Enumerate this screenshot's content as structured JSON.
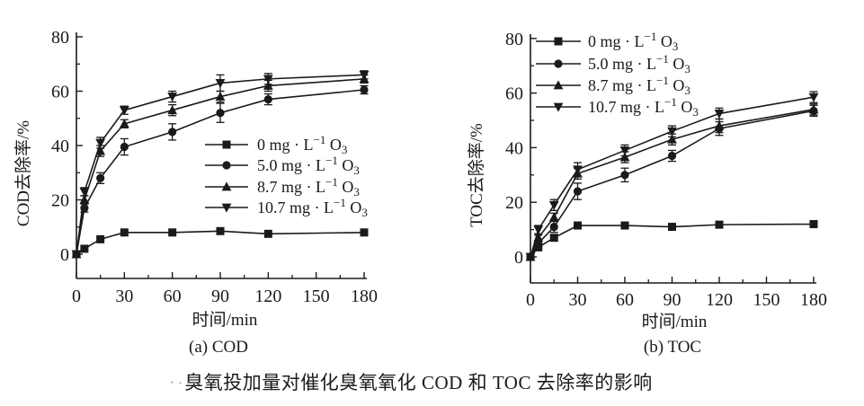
{
  "figure": {
    "caption": "臭氧投加量对催化臭氧氧化 COD 和 TOC 去除率的影响",
    "ink_color": "#1a1a1a",
    "background_color": "#ffffff"
  },
  "chart_data": [
    {
      "type": "line",
      "id": "cod",
      "subtitle": "(a) COD",
      "xlabel": "时间/min",
      "ylabel": "COD去除率/%",
      "xlim": [
        0,
        180
      ],
      "ylim": [
        -9,
        80
      ],
      "xticks": [
        0,
        30,
        60,
        90,
        120,
        150,
        180
      ],
      "yticks": [
        0,
        20,
        40,
        60,
        80
      ],
      "x_minor_ticks": [
        15,
        45,
        75,
        105,
        135,
        165
      ],
      "y_minor_ticks": [
        10,
        30,
        50,
        70
      ],
      "grid": false,
      "legend_position": "inside-middle-right",
      "x": [
        0,
        5,
        15,
        30,
        60,
        90,
        120,
        180
      ],
      "series": [
        {
          "key": "0mg-O3",
          "name": "0 mg·L⁻¹ O₃",
          "marker": "square",
          "label_parts": {
            "main": "0 mg · L",
            "sup": "−1",
            "tail": " O",
            "sub": "3"
          },
          "values": [
            0,
            2,
            5.5,
            8,
            8,
            8.5,
            7.5,
            8
          ],
          "errors": [
            1,
            0,
            0,
            0,
            0,
            0,
            0,
            0
          ]
        },
        {
          "key": "5.0mg-O3",
          "name": "5.0 mg·L⁻¹ O₃",
          "marker": "circle",
          "label_parts": {
            "main": "5.0 mg · L",
            "sup": "−1",
            "tail": " O",
            "sub": "3"
          },
          "values": [
            0,
            17,
            28,
            39.5,
            45,
            52,
            57,
            60.5
          ],
          "errors": [
            1,
            1.5,
            2,
            3,
            3,
            3.5,
            2,
            1.5
          ]
        },
        {
          "key": "8.7mg-O3",
          "name": "8.7 mg·L⁻¹ O₃",
          "marker": "triangle-up",
          "label_parts": {
            "main": "8.7 mg · L",
            "sup": "−1",
            "tail": " O",
            "sub": "3"
          },
          "values": [
            0,
            20,
            38,
            48,
            53,
            58,
            62,
            64.5
          ],
          "errors": [
            1,
            1.5,
            2,
            1.5,
            2,
            2,
            2,
            1.5
          ]
        },
        {
          "key": "10.7mg-O3",
          "name": "10.7 mg·L⁻¹ O₃",
          "marker": "triangle-down",
          "label_parts": {
            "main": "10.7 mg · L",
            "sup": "−1",
            "tail": " O",
            "sub": "3"
          },
          "values": [
            0,
            23,
            41,
            53,
            58,
            63,
            64.5,
            66
          ],
          "errors": [
            1,
            1.5,
            2,
            1.5,
            2,
            3,
            2,
            1.5
          ]
        }
      ]
    },
    {
      "type": "line",
      "id": "toc",
      "subtitle": "(b) TOC",
      "xlabel": "时间/min",
      "ylabel": "TOC去除率/%",
      "xlim": [
        0,
        180
      ],
      "ylim": [
        -9,
        80
      ],
      "xticks": [
        0,
        30,
        60,
        90,
        120,
        150,
        180
      ],
      "yticks": [
        0,
        20,
        40,
        60,
        80
      ],
      "x_minor_ticks": [
        15,
        45,
        75,
        105,
        135,
        165
      ],
      "y_minor_ticks": [
        10,
        30,
        50,
        70
      ],
      "grid": false,
      "legend_position": "inside-top-left",
      "x": [
        0,
        5,
        15,
        30,
        60,
        90,
        120,
        180
      ],
      "series": [
        {
          "key": "0mg-O3",
          "name": "0 mg·L⁻¹ O₃",
          "marker": "square",
          "label_parts": {
            "main": "0 mg · L",
            "sup": "−1",
            "tail": " O",
            "sub": "3"
          },
          "values": [
            0,
            3.5,
            7,
            11.5,
            11.5,
            11,
            11.8,
            12
          ],
          "errors": [
            1,
            0,
            0,
            0,
            0,
            0,
            0,
            0
          ]
        },
        {
          "key": "5.0mg-O3",
          "name": "5.0 mg·L⁻¹ O₃",
          "marker": "circle",
          "label_parts": {
            "main": "5.0 mg · L",
            "sup": "−1",
            "tail": " O",
            "sub": "3"
          },
          "values": [
            0,
            5,
            11,
            24,
            30,
            37,
            47,
            53.5
          ],
          "errors": [
            1,
            1,
            2,
            3,
            2.5,
            2,
            2.5,
            2
          ]
        },
        {
          "key": "8.7mg-O3",
          "name": "8.7 mg·L⁻¹ O₃",
          "marker": "triangle-up",
          "label_parts": {
            "main": "8.7 mg · L",
            "sup": "−1",
            "tail": " O",
            "sub": "3"
          },
          "values": [
            0,
            7,
            14.5,
            30.5,
            36.5,
            43,
            48,
            54
          ],
          "errors": [
            1,
            1,
            1.5,
            2,
            2,
            2,
            2.5,
            2
          ]
        },
        {
          "key": "10.7mg-O3",
          "name": "10.7 mg·L⁻¹ O₃",
          "marker": "triangle-down",
          "label_parts": {
            "main": "10.7 mg · L",
            "sup": "−1",
            "tail": " O",
            "sub": "3"
          },
          "values": [
            0,
            10,
            19,
            32,
            39,
            46,
            52.5,
            58.5
          ],
          "errors": [
            1,
            1.5,
            2,
            2.5,
            2,
            2,
            2,
            2
          ]
        }
      ]
    }
  ]
}
